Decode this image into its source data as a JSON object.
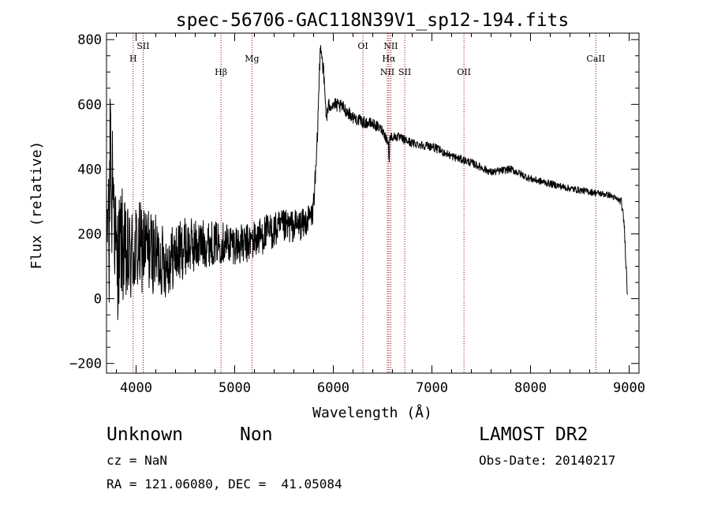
{
  "chart_data": {
    "type": "line",
    "title": "spec-56706-GAC118N39V1_sp12-194.fits",
    "xlabel": "Wavelength (Å)",
    "ylabel": "Flux (relative)",
    "xlim": [
      3700,
      9100
    ],
    "ylim": [
      -230,
      820
    ],
    "xticks": [
      4000,
      5000,
      6000,
      7000,
      8000,
      9000
    ],
    "yticks": [
      -200,
      0,
      200,
      400,
      600,
      800
    ],
    "grid": false,
    "colors": {
      "spectrum": "#000000",
      "lines": "#8b0000"
    },
    "lines": [
      {
        "label": "H",
        "wavelength": 3970,
        "row": 2
      },
      {
        "label": "SII",
        "wavelength": 4072,
        "row": 1
      },
      {
        "label": "Hβ",
        "wavelength": 4861,
        "row": 3
      },
      {
        "label": "Mg",
        "wavelength": 5175,
        "row": 2
      },
      {
        "label": "OI",
        "wavelength": 6300,
        "row": 1
      },
      {
        "label": "NII",
        "wavelength": 6548,
        "row": 3
      },
      {
        "label": "Hα",
        "wavelength": 6563,
        "row": 2
      },
      {
        "label": "NII",
        "wavelength": 6583,
        "row": 1
      },
      {
        "label": "SII",
        "wavelength": 6725,
        "row": 3
      },
      {
        "label": "OII",
        "wavelength": 7325,
        "row": 3
      },
      {
        "label": "CaII",
        "wavelength": 8662,
        "row": 2
      }
    ],
    "spectrum_anchors": [
      [
        3700,
        150
      ],
      [
        3720,
        430
      ],
      [
        3760,
        420
      ],
      [
        3800,
        100
      ],
      [
        3850,
        180
      ],
      [
        3900,
        110
      ],
      [
        4000,
        150
      ],
      [
        4100,
        160
      ],
      [
        4300,
        110
      ],
      [
        4500,
        160
      ],
      [
        4700,
        170
      ],
      [
        4900,
        175
      ],
      [
        5100,
        165
      ],
      [
        5300,
        200
      ],
      [
        5500,
        220
      ],
      [
        5700,
        230
      ],
      [
        5790,
        260
      ],
      [
        5830,
        420
      ],
      [
        5870,
        800
      ],
      [
        5900,
        700
      ],
      [
        5930,
        560
      ],
      [
        5960,
        600
      ],
      [
        6000,
        600
      ],
      [
        6100,
        590
      ],
      [
        6200,
        560
      ],
      [
        6300,
        545
      ],
      [
        6400,
        540
      ],
      [
        6500,
        520
      ],
      [
        6560,
        480
      ],
      [
        6580,
        500
      ],
      [
        6650,
        500
      ],
      [
        6800,
        480
      ],
      [
        7000,
        470
      ],
      [
        7200,
        440
      ],
      [
        7400,
        420
      ],
      [
        7600,
        390
      ],
      [
        7800,
        400
      ],
      [
        8000,
        370
      ],
      [
        8200,
        355
      ],
      [
        8400,
        340
      ],
      [
        8600,
        330
      ],
      [
        8800,
        320
      ],
      [
        8920,
        300
      ],
      [
        8950,
        230
      ],
      [
        8980,
        30
      ]
    ],
    "noise_profile": [
      [
        3700,
        180
      ],
      [
        3900,
        140
      ],
      [
        4300,
        90
      ],
      [
        4800,
        55
      ],
      [
        5300,
        50
      ],
      [
        5700,
        40
      ],
      [
        5830,
        30
      ],
      [
        6000,
        18
      ],
      [
        6600,
        12
      ],
      [
        7500,
        10
      ],
      [
        8900,
        8
      ],
      [
        9000,
        20
      ]
    ]
  },
  "info": {
    "object_class": "Unknown",
    "subclass": "Non",
    "survey": "LAMOST DR2",
    "cz": "cz = NaN",
    "obs_date": "Obs-Date: 20140217",
    "coords": "RA = 121.06080, DEC =  41.05084"
  }
}
